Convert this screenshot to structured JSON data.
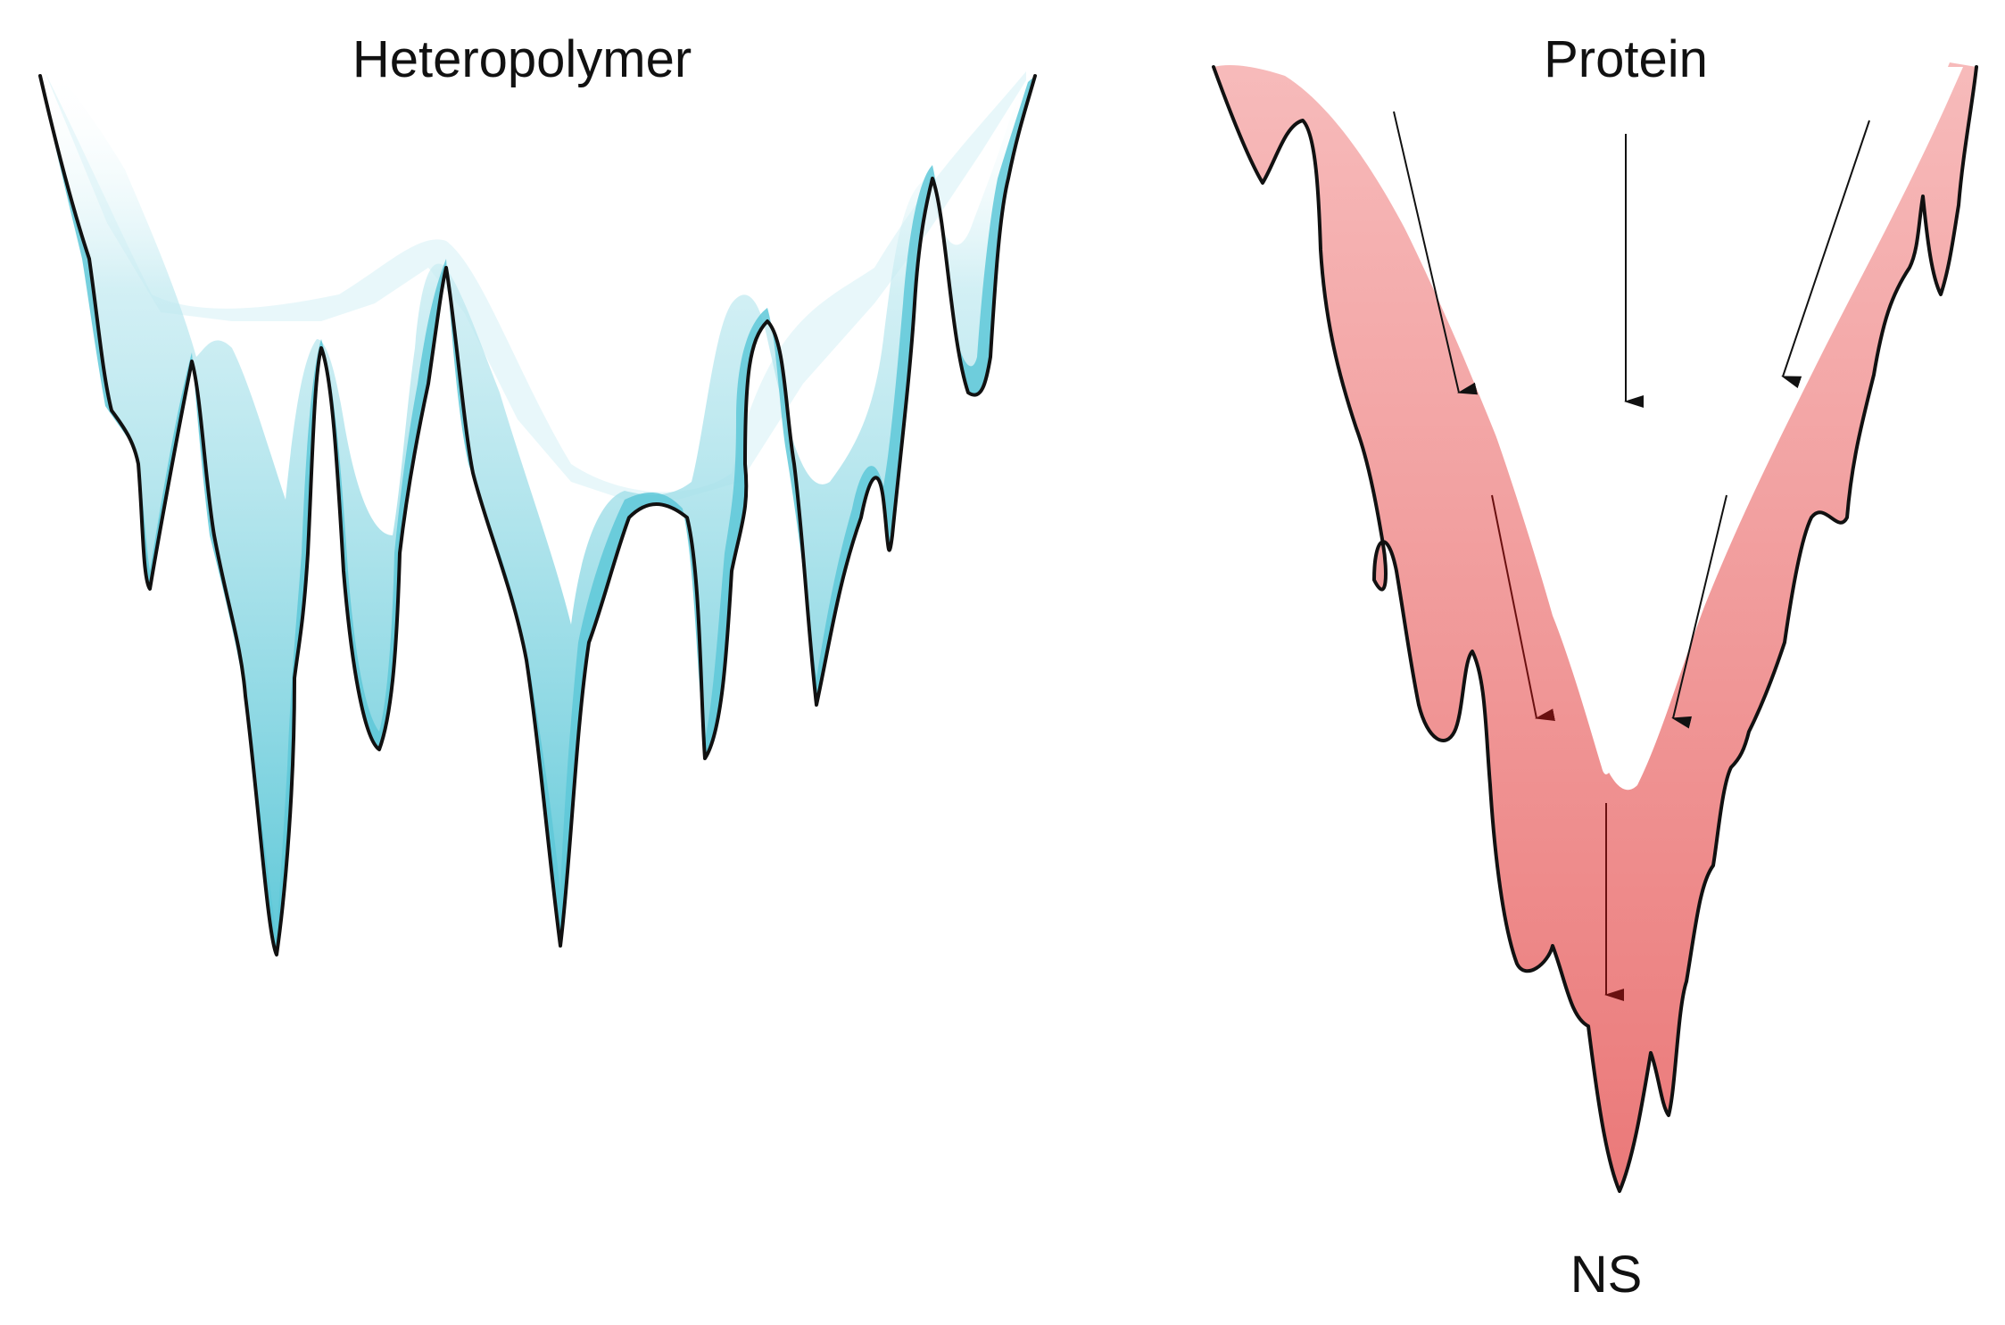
{
  "panels": [
    {
      "title": "Heteropolymer",
      "fill_color": "#5ec8d8",
      "outline_color": "#111111"
    },
    {
      "title": "Protein",
      "fill_color": "#ee7a7a",
      "outline_color": "#111111",
      "bottom_label": "NS"
    }
  ],
  "arrow_color": "#111111"
}
